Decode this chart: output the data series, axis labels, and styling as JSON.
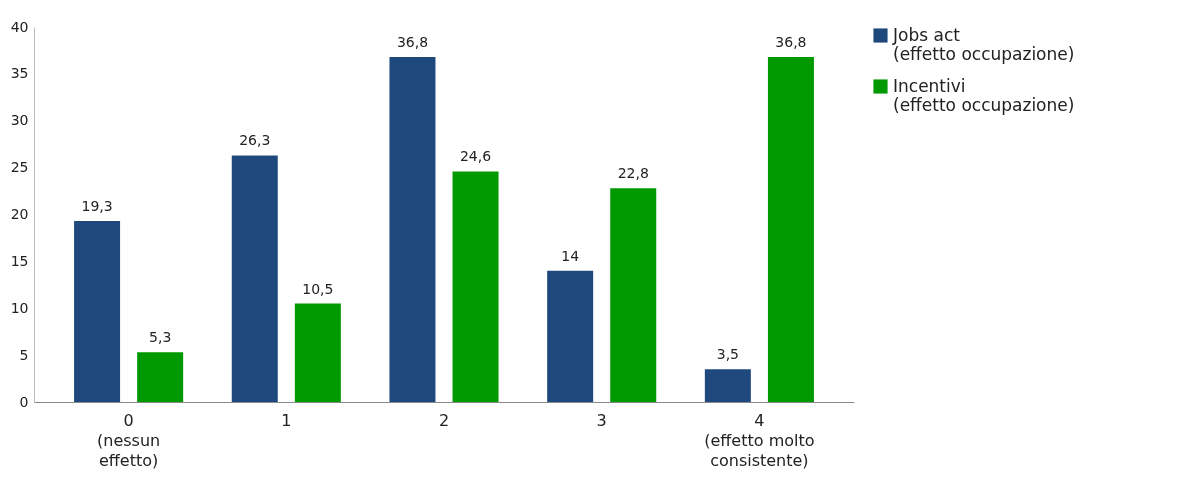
{
  "chart_data": {
    "type": "bar",
    "categories": [
      "0\n(nessun\neffetto)",
      "1",
      "2",
      "3",
      "4\n(effetto molto\nconsistente)"
    ],
    "series": [
      {
        "name": "Jobs act\n(effetto occupazione)",
        "color": "#1f497d",
        "values": [
          19.3,
          26.3,
          36.8,
          14,
          3.5
        ],
        "value_labels": [
          "19,3",
          "26,3",
          "36,8",
          "14",
          "3,5"
        ]
      },
      {
        "name": "Incentivi\n(effetto occupazione)",
        "color": "#009900",
        "values": [
          5.3,
          10.5,
          24.6,
          22.8,
          36.8
        ],
        "value_labels": [
          "5,3",
          "10,5",
          "24,6",
          "22,8",
          "36,8"
        ]
      }
    ],
    "ylim": [
      0,
      40
    ],
    "yticks": [
      0,
      5,
      10,
      15,
      20,
      25,
      30,
      35,
      40
    ],
    "grid": false,
    "legend": "right"
  }
}
